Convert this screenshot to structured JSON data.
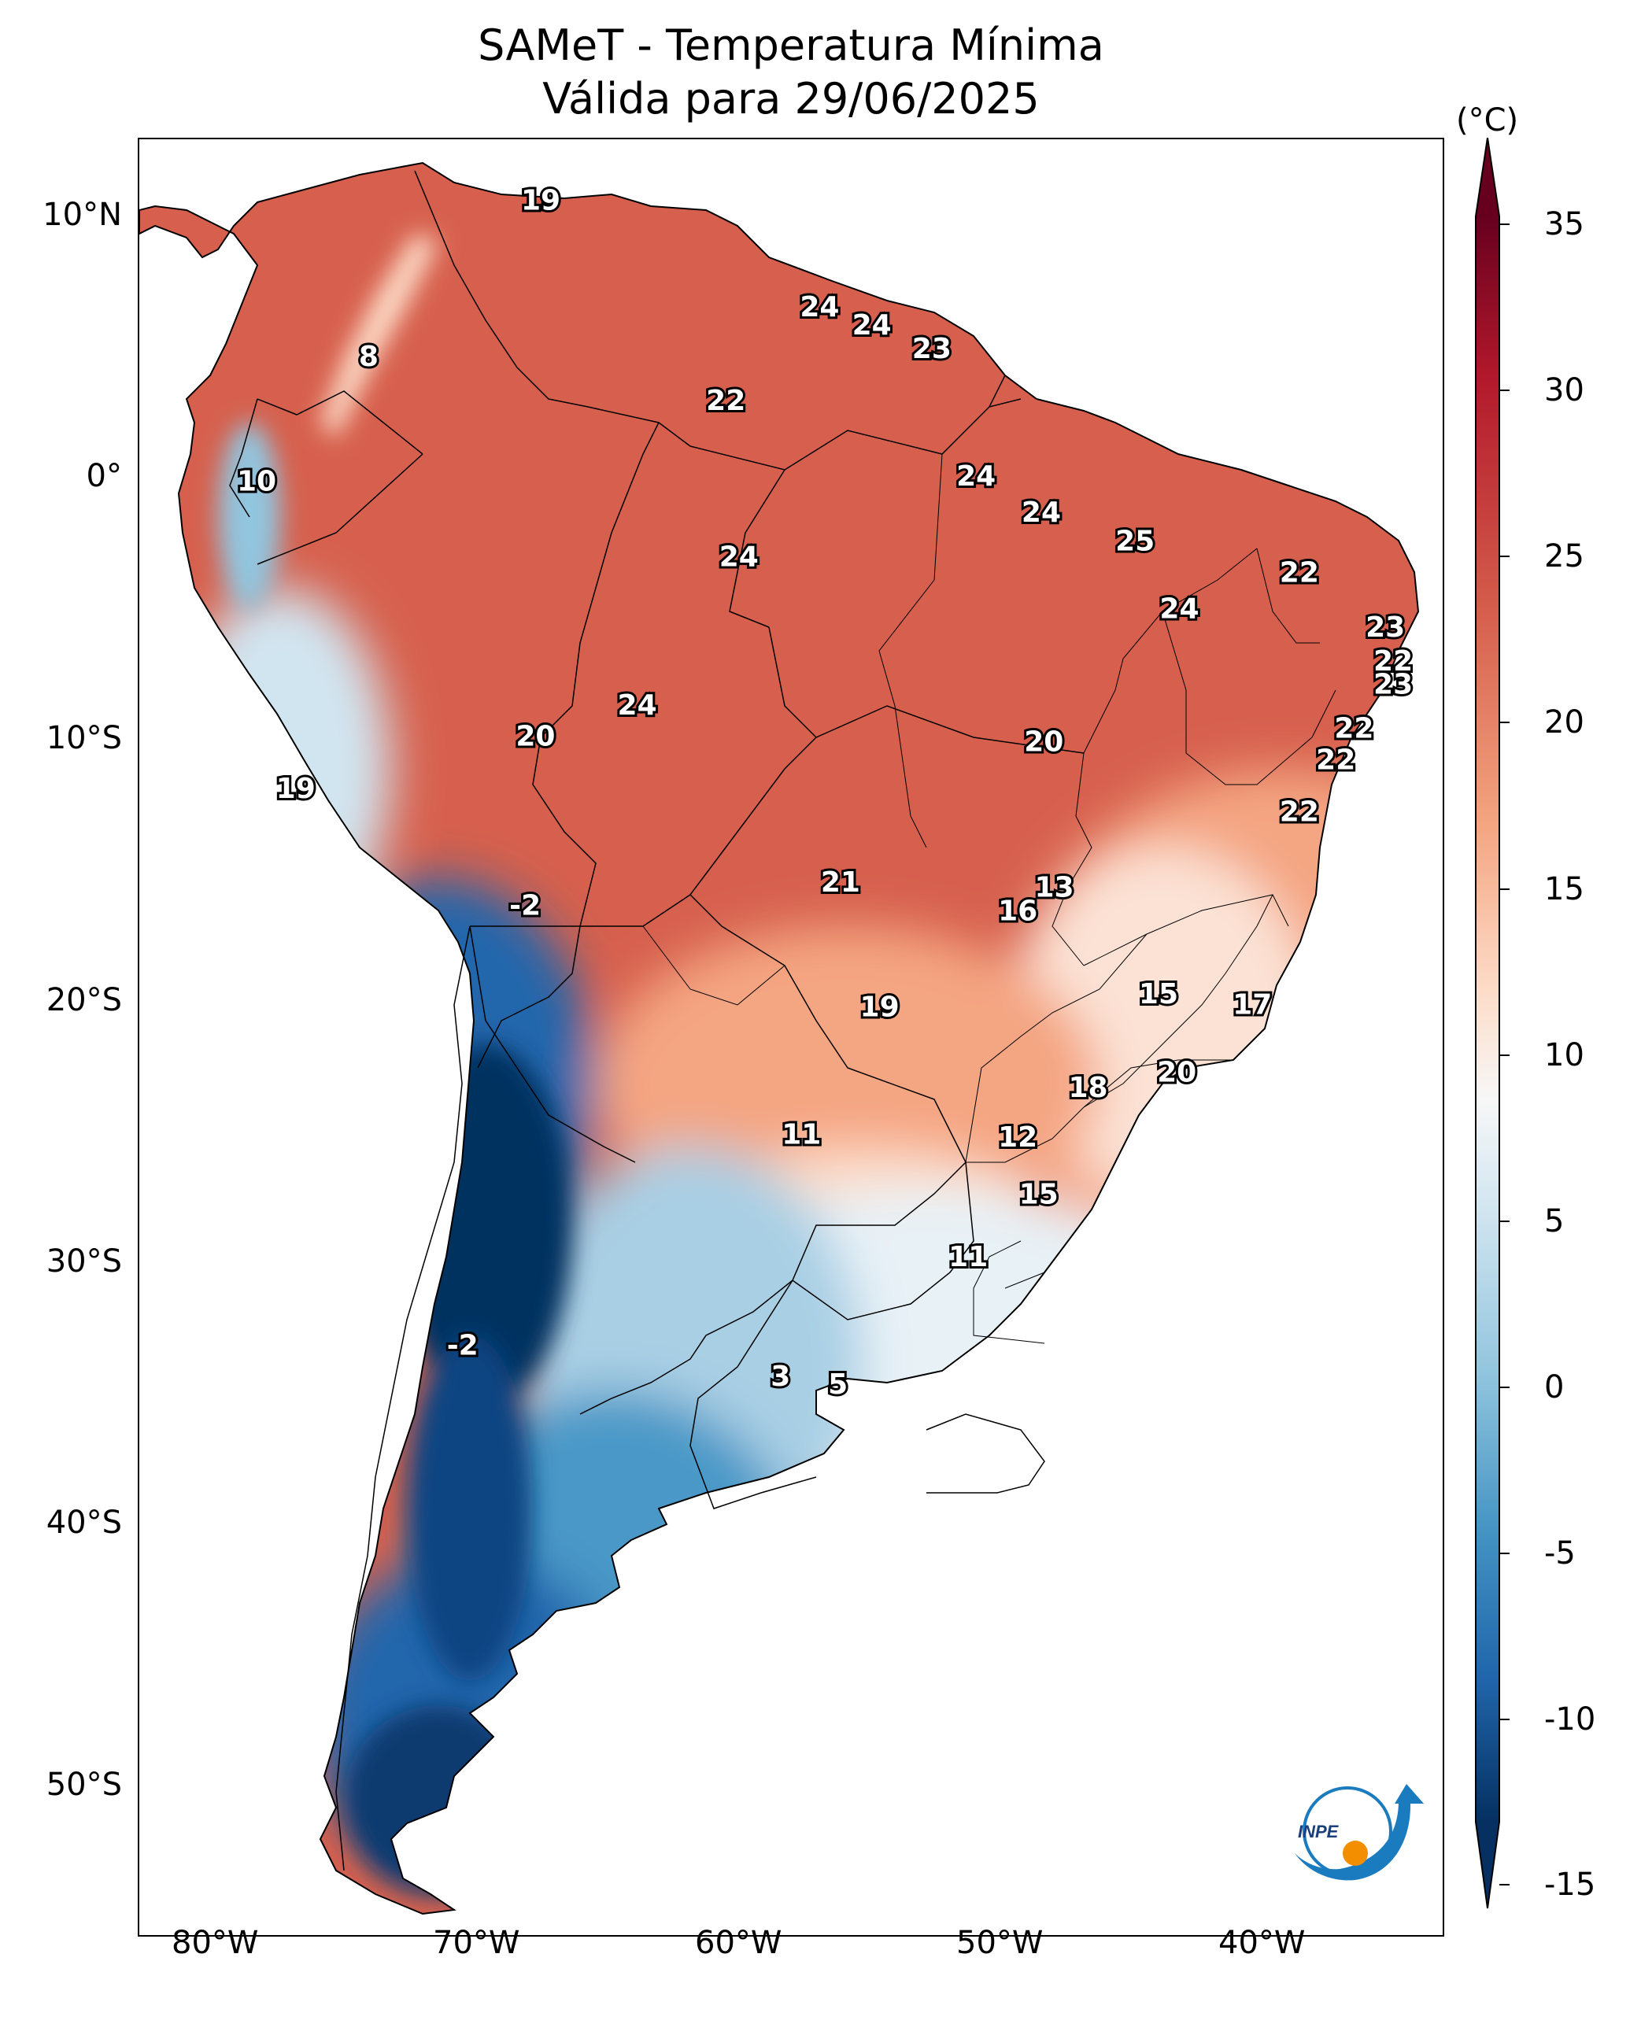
{
  "title": {
    "line1": "SAMeT - Temperatura Mínima",
    "line2": "Válida para 29/06/2025"
  },
  "axes": {
    "lat_labels": [
      "10°N",
      "0°",
      "10°S",
      "20°S",
      "30°S",
      "40°S",
      "50°S"
    ],
    "lon_labels": [
      "80°W",
      "70°W",
      "60°W",
      "50°W",
      "40°W"
    ]
  },
  "colorbar": {
    "unit": "(°C)",
    "ticks": [
      "35",
      "30",
      "25",
      "20",
      "15",
      "10",
      "5",
      "0",
      "-5",
      "-10",
      "-15"
    ],
    "range": [
      -15,
      35
    ],
    "colormap": "RdBu_r",
    "colors": [
      "#67001f",
      "#b2182b",
      "#d6604d",
      "#f4a582",
      "#fddbc7",
      "#f7f7f7",
      "#d1e5f0",
      "#92c5de",
      "#4393c3",
      "#2166ac",
      "#053061"
    ]
  },
  "map": {
    "extent": {
      "lon": [
        -83,
        -33
      ],
      "lat": [
        -56,
        13
      ]
    },
    "station_labels": [
      {
        "value": "19",
        "lon": -67.6,
        "lat": 10.6
      },
      {
        "value": "8",
        "lon": -74.2,
        "lat": 4.6
      },
      {
        "value": "24",
        "lon": -56.9,
        "lat": 6.5
      },
      {
        "value": "24",
        "lon": -54.9,
        "lat": 5.8
      },
      {
        "value": "23",
        "lon": -52.6,
        "lat": 4.9
      },
      {
        "value": "22",
        "lon": -60.5,
        "lat": 2.9
      },
      {
        "value": "10",
        "lon": -78.5,
        "lat": -0.2
      },
      {
        "value": "24",
        "lon": -50.9,
        "lat": 0.0
      },
      {
        "value": "24",
        "lon": -48.4,
        "lat": -1.4
      },
      {
        "value": "25",
        "lon": -44.8,
        "lat": -2.5
      },
      {
        "value": "24",
        "lon": -60.0,
        "lat": -3.1
      },
      {
        "value": "22",
        "lon": -38.5,
        "lat": -3.7
      },
      {
        "value": "24",
        "lon": -43.1,
        "lat": -5.1
      },
      {
        "value": "23",
        "lon": -35.2,
        "lat": -5.8
      },
      {
        "value": "22",
        "lon": -34.9,
        "lat": -7.1
      },
      {
        "value": "23",
        "lon": -34.9,
        "lat": -8.0
      },
      {
        "value": "24",
        "lon": -63.9,
        "lat": -8.8
      },
      {
        "value": "20",
        "lon": -67.8,
        "lat": -10.0
      },
      {
        "value": "20",
        "lon": -48.3,
        "lat": -10.2
      },
      {
        "value": "22",
        "lon": -36.4,
        "lat": -9.7
      },
      {
        "value": "22",
        "lon": -37.1,
        "lat": -10.9
      },
      {
        "value": "19",
        "lon": -77.0,
        "lat": -12.0
      },
      {
        "value": "22",
        "lon": -38.5,
        "lat": -12.9
      },
      {
        "value": "13",
        "lon": -47.9,
        "lat": -15.8
      },
      {
        "value": "21",
        "lon": -56.1,
        "lat": -15.6
      },
      {
        "value": "16",
        "lon": -49.3,
        "lat": -16.7
      },
      {
        "value": "-2",
        "lon": -68.2,
        "lat": -16.5
      },
      {
        "value": "19",
        "lon": -54.6,
        "lat": -20.4
      },
      {
        "value": "15",
        "lon": -43.9,
        "lat": -19.9
      },
      {
        "value": "17",
        "lon": -40.3,
        "lat": -20.3
      },
      {
        "value": "20",
        "lon": -43.2,
        "lat": -22.9
      },
      {
        "value": "18",
        "lon": -46.6,
        "lat": -23.5
      },
      {
        "value": "11",
        "lon": -57.6,
        "lat": -25.3
      },
      {
        "value": "12",
        "lon": -49.3,
        "lat": -25.4
      },
      {
        "value": "15",
        "lon": -48.5,
        "lat": -27.6
      },
      {
        "value": "11",
        "lon": -51.2,
        "lat": -30.0
      },
      {
        "value": "-2",
        "lon": -70.6,
        "lat": -33.4
      },
      {
        "value": "3",
        "lon": -58.4,
        "lat": -34.6
      },
      {
        "value": "5",
        "lon": -56.2,
        "lat": -34.9
      }
    ]
  },
  "logo": {
    "text": "INPE"
  }
}
